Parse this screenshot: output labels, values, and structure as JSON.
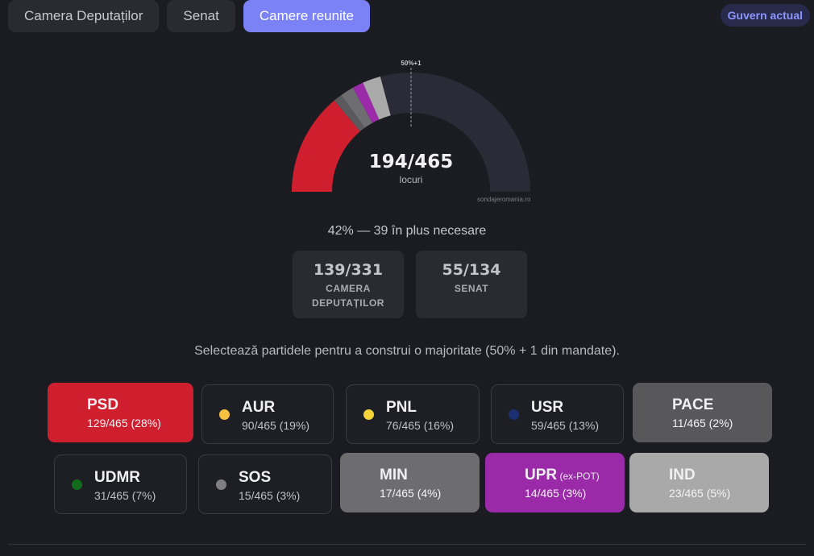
{
  "tabs": [
    {
      "label": "Camera Deputaților",
      "active": false
    },
    {
      "label": "Senat",
      "active": false
    },
    {
      "label": "Camere reunite",
      "active": true
    }
  ],
  "government_button": "Guvern actual",
  "gauge": {
    "count": "194/465",
    "unit": "locuri",
    "marker": "50%+1",
    "source": "sondajeromania.ro",
    "total": 465,
    "segments": [
      {
        "party": "PSD",
        "seats": 129,
        "color": "#cf1f2e"
      },
      {
        "party": "PACE",
        "seats": 11,
        "color": "#5a5a5c"
      },
      {
        "party": "MIN",
        "seats": 17,
        "color": "#6e6e70"
      },
      {
        "party": "UPR",
        "seats": 14,
        "color": "#9b2aa8"
      },
      {
        "party": "IND",
        "seats": 23,
        "color": "#aaaaaa"
      }
    ],
    "remainder_color": "#2a2b36"
  },
  "summary": "42% — 39 în plus necesare",
  "chambers": [
    {
      "value": "139/331",
      "label": "CAMERA DEPUTAȚILOR"
    },
    {
      "value": "55/134",
      "label": "SENAT"
    }
  ],
  "instructions": "Selectează partidele pentru a construi o majoritate (50% + 1 din mandate).",
  "parties": [
    {
      "name": "PSD",
      "sub": "",
      "seats": "129/465 (28%)",
      "color": "#cf1f2e",
      "selected": true
    },
    {
      "name": "AUR",
      "sub": "",
      "seats": "90/465 (19%)",
      "color": "#f5c242",
      "selected": false
    },
    {
      "name": "PNL",
      "sub": "",
      "seats": "76/465 (16%)",
      "color": "#f5d43a",
      "selected": false
    },
    {
      "name": "USR",
      "sub": "",
      "seats": "59/465 (13%)",
      "color": "#1b2f73",
      "selected": false
    },
    {
      "name": "PACE",
      "sub": "",
      "seats": "11/465 (2%)",
      "color": "#58585a",
      "selected": true
    },
    {
      "name": "UDMR",
      "sub": "",
      "seats": "31/465 (7%)",
      "color": "#136b1c",
      "selected": false
    },
    {
      "name": "SOS",
      "sub": "",
      "seats": "15/465 (3%)",
      "color": "#7f7f82",
      "selected": false
    },
    {
      "name": "MIN",
      "sub": "",
      "seats": "17/465 (4%)",
      "color": "#6d6d6f",
      "selected": true
    },
    {
      "name": "UPR",
      "sub": "(ex-POT)",
      "seats": "14/465 (3%)",
      "color": "#9b2aa8",
      "selected": true
    },
    {
      "name": "IND",
      "sub": "",
      "seats": "23/465 (5%)",
      "color": "#a9a9a9",
      "selected": true
    }
  ]
}
